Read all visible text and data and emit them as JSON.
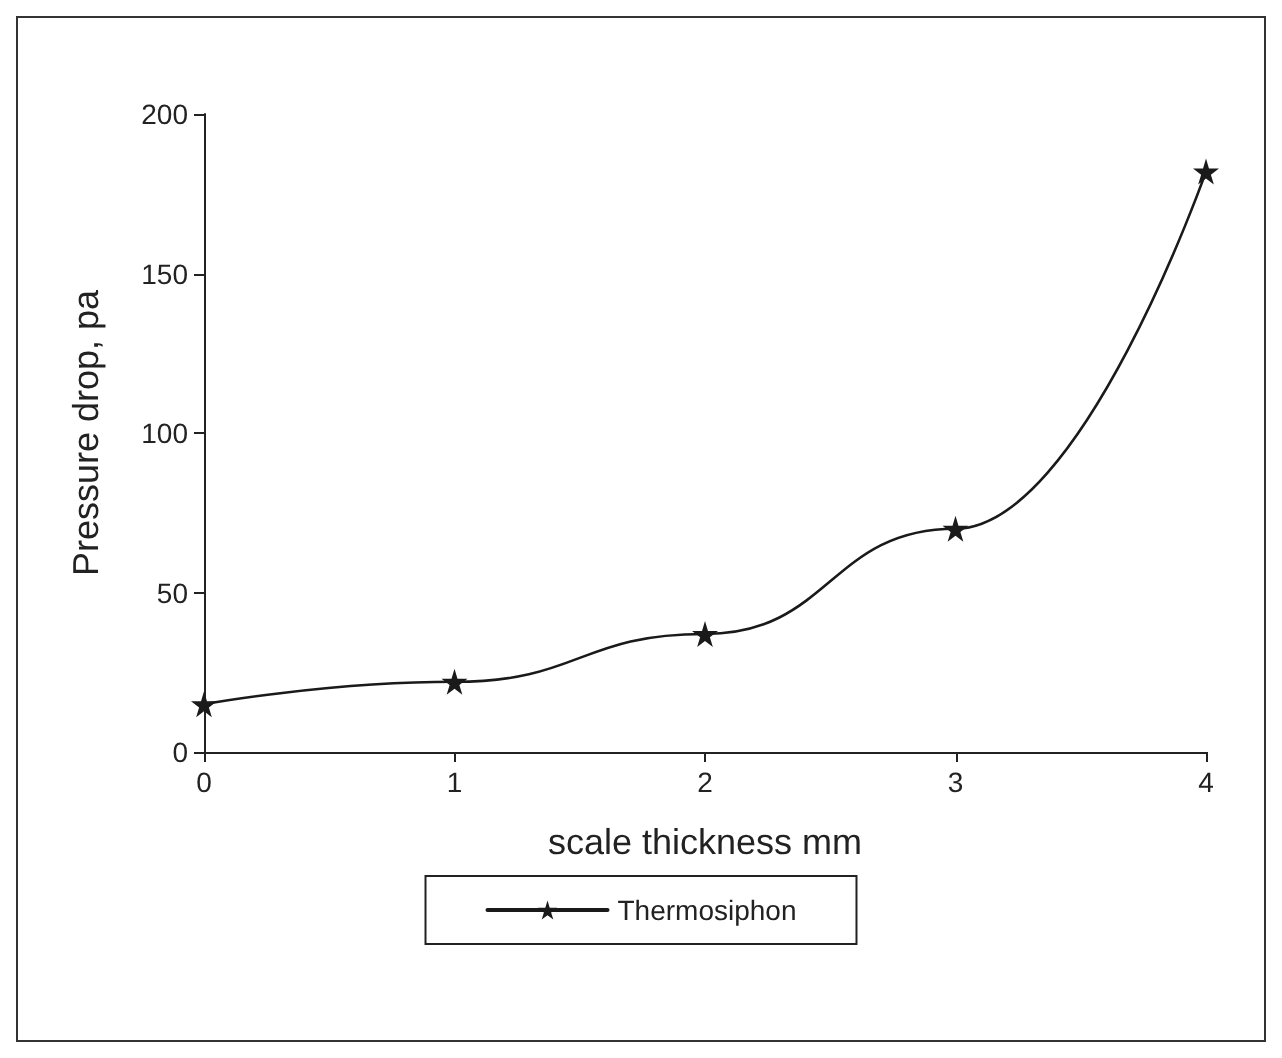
{
  "chart_data": {
    "type": "line",
    "xlabel": "scale thickness mm",
    "ylabel": "Pressure drop, pa",
    "x": [
      0,
      1,
      2,
      3,
      4
    ],
    "series": [
      {
        "name": "Thermosiphon",
        "color": "#1a1a1a",
        "values": [
          15,
          22,
          37,
          70,
          182
        ]
      }
    ],
    "xlim": [
      0,
      4
    ],
    "xticks": [
      0,
      1,
      2,
      3,
      4
    ],
    "ylim": [
      0,
      200
    ],
    "yticks": [
      0,
      50,
      100,
      150,
      200
    ],
    "grid": false,
    "legend": "bottom",
    "marker": "star",
    "line_style": "solid"
  }
}
